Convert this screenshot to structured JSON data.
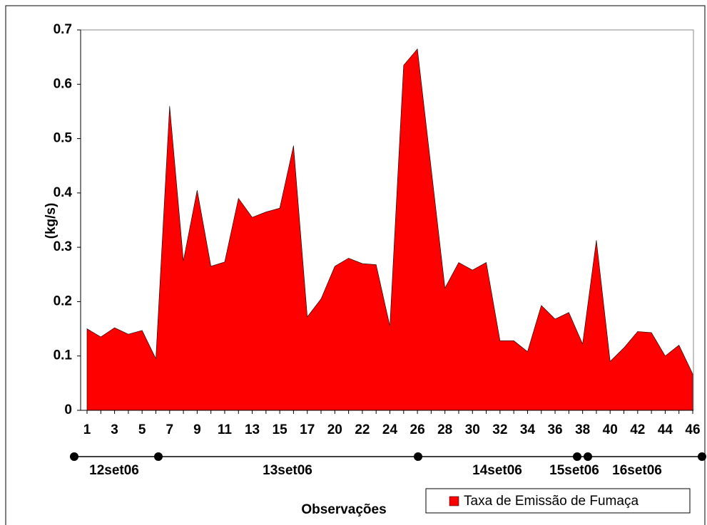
{
  "chart_data": {
    "type": "area",
    "y_label": "(kg/s)",
    "x_label": "Observações",
    "categories": [
      "1",
      null,
      "3",
      null,
      "5",
      null,
      "7",
      null,
      "9",
      null,
      "11",
      null,
      "13",
      null,
      "15",
      null,
      "17",
      null,
      "20",
      null,
      "22",
      null,
      "24",
      null,
      "26",
      null,
      "28",
      null,
      "30",
      null,
      "32",
      null,
      "34",
      null,
      "36",
      null,
      "38",
      null,
      "40",
      null,
      "42",
      null,
      "44",
      null,
      "46"
    ],
    "series": [
      {
        "name": "Taxa de Emissão de Fumaça",
        "color": "#ff0000",
        "values": [
          0.15,
          0.135,
          0.152,
          0.14,
          0.147,
          0.095,
          0.56,
          0.275,
          0.405,
          0.265,
          0.273,
          0.39,
          0.355,
          0.365,
          0.372,
          0.487,
          0.172,
          0.205,
          0.265,
          0.28,
          0.27,
          0.268,
          0.155,
          0.635,
          0.665,
          0.445,
          0.225,
          0.272,
          0.258,
          0.272,
          0.128,
          0.128,
          0.108,
          0.193,
          0.168,
          0.18,
          0.122,
          0.313,
          0.09,
          0.115,
          0.145,
          0.143,
          0.1,
          0.12,
          0.067
        ]
      }
    ],
    "ylim": [
      0,
      0.7
    ],
    "yticks": [
      0,
      0.1,
      0.2,
      0.3,
      0.4,
      0.5,
      0.6,
      0.7
    ],
    "date_labels": [
      "12set06",
      "13set06",
      "14set06",
      "15set06",
      "16set06"
    ]
  }
}
